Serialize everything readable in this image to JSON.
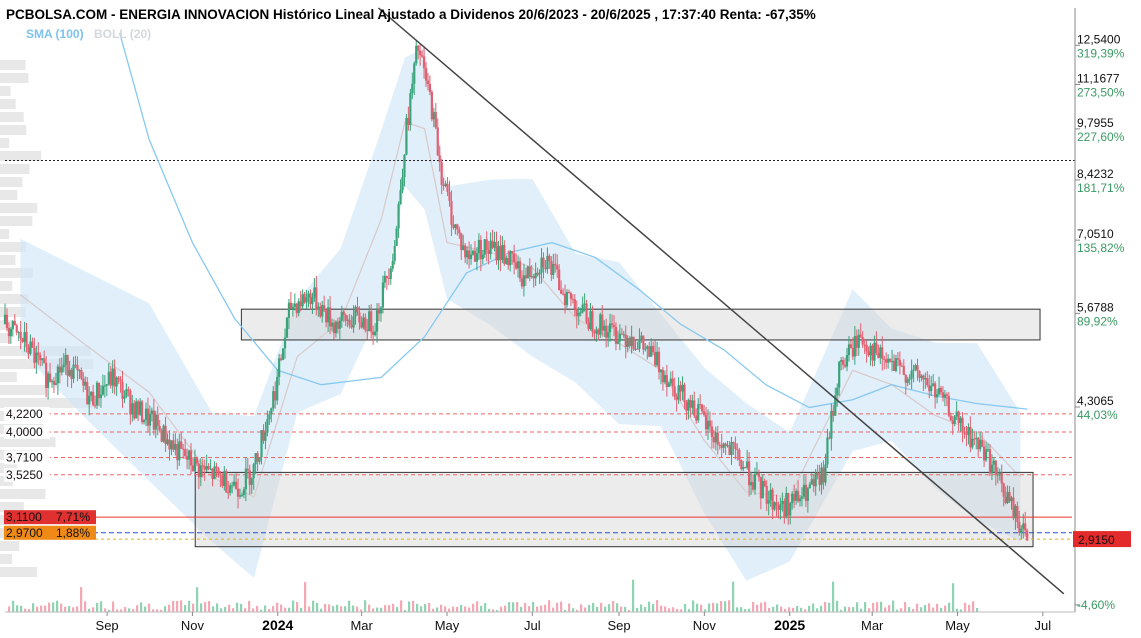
{
  "header": {
    "title": "PCBOLSA.COM - ENERGIA INNOVACION Histórico Lineal Ajustado a Dividenos 20/6/2023 - 20/6/2025 , 17:37:40 Renta: -67,35%",
    "legend_sma": "SMA (100)",
    "legend_boll": "BOLL (20)"
  },
  "chart_data": {
    "type": "candlestick",
    "title": "PCBOLSA.COM - ENERGIA INNOVACION Histórico Lineal Ajustado a Dividenos 20/6/2023 - 20/6/2025 , 17:37:40 Renta: -67,35%",
    "period": "20/6/2023 - 20/6/2025",
    "timestamp": "17:37:40",
    "return": "-67,35%",
    "y_scale": "log",
    "ylim": [
      2.35,
      14.0
    ],
    "x_ticks": [
      {
        "label": "Sep",
        "date": "2023-09-01",
        "bold": false
      },
      {
        "label": "Nov",
        "date": "2023-11-01",
        "bold": false
      },
      {
        "label": "2024",
        "date": "2024-01-01",
        "bold": true
      },
      {
        "label": "Mar",
        "date": "2024-03-01",
        "bold": false
      },
      {
        "label": "May",
        "date": "2024-05-01",
        "bold": false
      },
      {
        "label": "Jul",
        "date": "2024-07-01",
        "bold": false
      },
      {
        "label": "Sep",
        "date": "2024-09-01",
        "bold": false
      },
      {
        "label": "Nov",
        "date": "2024-11-01",
        "bold": false
      },
      {
        "label": "2025",
        "date": "2025-01-01",
        "bold": true
      },
      {
        "label": "Mar",
        "date": "2025-03-01",
        "bold": false
      },
      {
        "label": "May",
        "date": "2025-05-01",
        "bold": false
      },
      {
        "label": "Jul",
        "date": "2025-07-01",
        "bold": false
      }
    ],
    "y_ticks": [
      {
        "value": 12.54,
        "label": "12,5400",
        "pct": "319,39%"
      },
      {
        "value": 11.1677,
        "label": "11,1677",
        "pct": "273,50%"
      },
      {
        "value": 9.7955,
        "label": "9,7955",
        "pct": "227,60%"
      },
      {
        "value": 8.4232,
        "label": "8,4232",
        "pct": "181,71%"
      },
      {
        "value": 7.051,
        "label": "7,0510",
        "pct": "135,82%"
      },
      {
        "value": 5.6788,
        "label": "5,6788",
        "pct": "89,92%"
      },
      {
        "value": 4.3065,
        "label": "4,3065",
        "pct": "44,03%"
      },
      {
        "value": 2.4,
        "label": "",
        "pct": "-4,60%"
      }
    ],
    "last_price": {
      "value": 2.915,
      "label": "2,9150"
    },
    "left_levels": [
      {
        "label": "4,2200",
        "value": 4.22
      },
      {
        "label": "4,0000",
        "value": 4.0
      },
      {
        "label": "3,7100",
        "value": 3.71
      },
      {
        "label": "3,5250",
        "value": 3.525
      }
    ],
    "left_tags": [
      {
        "label": "3,1100",
        "pct": "7,71%",
        "value": 3.11,
        "color": "#e03030"
      },
      {
        "label": "2,9700",
        "pct": "1,88%",
        "value": 2.97,
        "color": "#f08a16"
      }
    ],
    "reference_price": 8.92,
    "resistance_dashed": [
      4.22,
      4.0,
      3.71,
      3.525
    ],
    "zones": [
      {
        "from": "2023-12-06",
        "to": "2025-06-29",
        "low": 5.25,
        "high": 5.75
      },
      {
        "from": "2023-11-03",
        "to": "2025-06-24",
        "low": 2.85,
        "high": 3.55
      }
    ],
    "trendline": {
      "from": {
        "date": "2024-03-13",
        "value": 14.0
      },
      "to": {
        "date": "2025-07-16",
        "value": 2.48
      }
    },
    "series": [
      {
        "name": "SMA (100)",
        "color": "#87c9f0",
        "points": [
          [
            "2023-09-10",
            13.0
          ],
          [
            "2023-10-01",
            9.5
          ],
          [
            "2023-11-01",
            7.0
          ],
          [
            "2023-12-01",
            5.6
          ],
          [
            "2024-01-01",
            4.8
          ],
          [
            "2024-02-01",
            4.6
          ],
          [
            "2024-03-15",
            4.7
          ],
          [
            "2024-04-15",
            5.3
          ],
          [
            "2024-05-15",
            6.4
          ],
          [
            "2024-06-15",
            6.8
          ],
          [
            "2024-07-15",
            7.0
          ],
          [
            "2024-08-15",
            6.7
          ],
          [
            "2024-09-15",
            6.1
          ],
          [
            "2024-10-15",
            5.5
          ],
          [
            "2024-11-15",
            5.1
          ],
          [
            "2024-12-15",
            4.6
          ],
          [
            "2025-01-15",
            4.3
          ],
          [
            "2025-02-15",
            4.4
          ],
          [
            "2025-03-15",
            4.6
          ],
          [
            "2025-04-15",
            4.45
          ],
          [
            "2025-05-15",
            4.35
          ],
          [
            "2025-06-20",
            4.28
          ]
        ]
      },
      {
        "name": "BOLL (20)",
        "color": "#cfe8f8",
        "points": [
          [
            "2023-07-01",
            6.0
          ],
          [
            "2023-08-15",
            5.2
          ],
          [
            "2023-10-01",
            4.5
          ],
          [
            "2023-11-15",
            3.5
          ],
          [
            "2023-12-15",
            3.3
          ],
          [
            "2024-01-15",
            5.0
          ],
          [
            "2024-02-15",
            5.55
          ],
          [
            "2024-03-15",
            7.5
          ],
          [
            "2024-04-01",
            10.0
          ],
          [
            "2024-04-15",
            9.8
          ],
          [
            "2024-05-01",
            7.0
          ],
          [
            "2024-06-01",
            6.8
          ],
          [
            "2024-07-01",
            6.5
          ],
          [
            "2024-08-01",
            5.6
          ],
          [
            "2024-09-01",
            5.2
          ],
          [
            "2024-10-01",
            4.8
          ],
          [
            "2024-11-01",
            3.9
          ],
          [
            "2024-12-01",
            3.35
          ],
          [
            "2025-01-01",
            3.3
          ],
          [
            "2025-02-15",
            4.8
          ],
          [
            "2025-03-15",
            4.6
          ],
          [
            "2025-04-15",
            4.2
          ],
          [
            "2025-05-15",
            4.0
          ],
          [
            "2025-06-15",
            3.5
          ]
        ]
      },
      {
        "name": "Close",
        "color_up": "#3aa37a",
        "color_down": "#e06070",
        "points": [
          [
            "2023-06-20",
            5.5
          ],
          [
            "2023-07-05",
            5.2
          ],
          [
            "2023-07-20",
            4.7
          ],
          [
            "2023-08-05",
            4.9
          ],
          [
            "2023-08-20",
            4.4
          ],
          [
            "2023-09-05",
            4.7
          ],
          [
            "2023-09-20",
            4.3
          ],
          [
            "2023-10-05",
            4.1
          ],
          [
            "2023-10-20",
            3.8
          ],
          [
            "2023-11-05",
            3.6
          ],
          [
            "2023-11-20",
            3.5
          ],
          [
            "2023-12-05",
            3.4
          ],
          [
            "2023-12-15",
            3.6
          ],
          [
            "2023-12-31",
            4.6
          ],
          [
            "2024-01-10",
            5.8
          ],
          [
            "2024-01-25",
            6.0
          ],
          [
            "2024-02-10",
            5.5
          ],
          [
            "2024-02-25",
            5.6
          ],
          [
            "2024-03-10",
            5.5
          ],
          [
            "2024-03-25",
            7.0
          ],
          [
            "2024-04-01",
            9.5
          ],
          [
            "2024-04-10",
            12.5
          ],
          [
            "2024-04-20",
            10.5
          ],
          [
            "2024-04-27",
            8.6
          ],
          [
            "2024-05-05",
            7.5
          ],
          [
            "2024-05-15",
            6.7
          ],
          [
            "2024-05-25",
            6.9
          ],
          [
            "2024-06-10",
            6.8
          ],
          [
            "2024-06-25",
            6.3
          ],
          [
            "2024-07-10",
            6.7
          ],
          [
            "2024-07-25",
            6.0
          ],
          [
            "2024-08-10",
            5.6
          ],
          [
            "2024-08-25",
            5.4
          ],
          [
            "2024-09-10",
            5.3
          ],
          [
            "2024-09-25",
            5.0
          ],
          [
            "2024-10-10",
            4.6
          ],
          [
            "2024-10-25",
            4.3
          ],
          [
            "2024-11-10",
            3.9
          ],
          [
            "2024-11-25",
            3.7
          ],
          [
            "2024-12-10",
            3.4
          ],
          [
            "2024-12-25",
            3.2
          ],
          [
            "2025-01-10",
            3.3
          ],
          [
            "2025-01-25",
            3.5
          ],
          [
            "2025-02-05",
            4.8
          ],
          [
            "2025-02-20",
            5.3
          ],
          [
            "2025-03-05",
            5.0
          ],
          [
            "2025-03-20",
            4.8
          ],
          [
            "2025-04-05",
            4.7
          ],
          [
            "2025-04-20",
            4.4
          ],
          [
            "2025-05-05",
            4.0
          ],
          [
            "2025-05-20",
            3.8
          ],
          [
            "2025-06-05",
            3.3
          ],
          [
            "2025-06-20",
            2.915
          ]
        ]
      }
    ],
    "xlabel": "",
    "ylabel": ""
  }
}
